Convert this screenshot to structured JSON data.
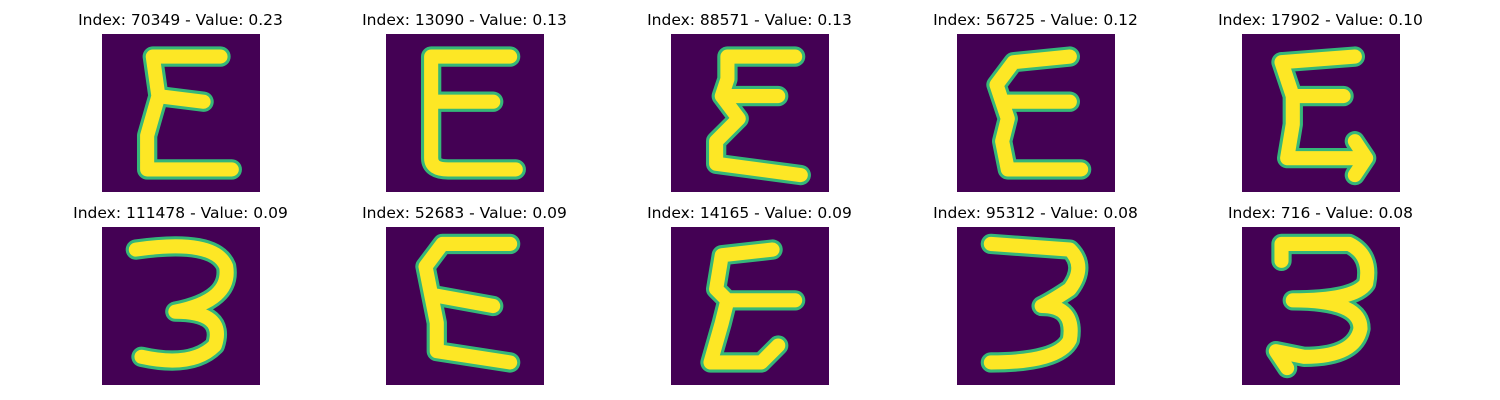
{
  "figure": {
    "background_color": "#ffffff",
    "image_background_color": "#440154",
    "stroke_color": "#fde725",
    "edge_color": "#35b779",
    "samples": [
      {
        "title": "Index: 70349 - Value: 0.23",
        "glyph": "E"
      },
      {
        "title": "Index: 13090 - Value: 0.13",
        "glyph": "E"
      },
      {
        "title": "Index: 88571 - Value: 0.13",
        "glyph": "E"
      },
      {
        "title": "Index: 56725 - Value: 0.12",
        "glyph": "E"
      },
      {
        "title": "Index: 17902 - Value: 0.10",
        "glyph": "E"
      },
      {
        "title": "Index: 111478 - Value: 0.09",
        "glyph": "3"
      },
      {
        "title": "Index: 52683 - Value: 0.09",
        "glyph": "E"
      },
      {
        "title": "Index: 14165 - Value: 0.09",
        "glyph": "E"
      },
      {
        "title": "Index: 95312 - Value: 0.08",
        "glyph": "3"
      },
      {
        "title": "Index: 716 - Value: 0.08",
        "glyph": "3"
      }
    ]
  }
}
